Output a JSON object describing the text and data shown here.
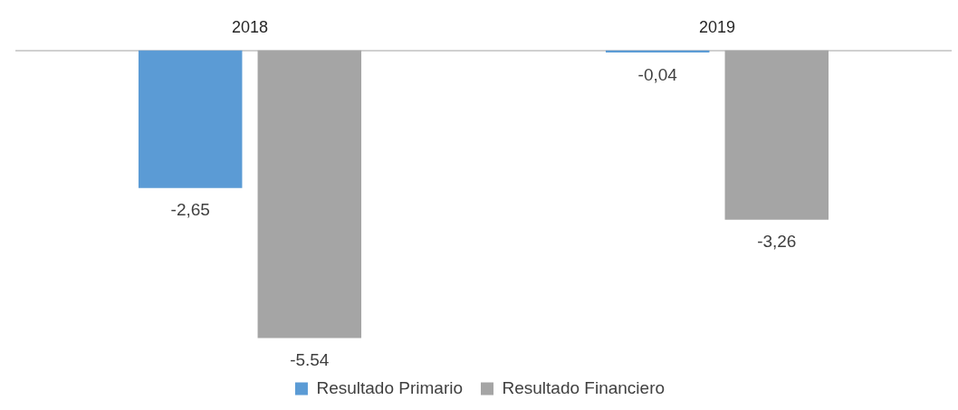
{
  "chart_data": {
    "type": "bar",
    "categories": [
      "2018",
      "2019"
    ],
    "series": [
      {
        "name": "Resultado Primario",
        "color": "#5b9bd5",
        "values": [
          -2.65,
          -0.04
        ],
        "value_labels": [
          "-2,65",
          "-0,04"
        ]
      },
      {
        "name": "Resultado Financiero",
        "color": "#a5a5a5",
        "values": [
          -5.54,
          -3.26
        ],
        "value_labels": [
          "-5.54",
          "-3,26"
        ]
      }
    ],
    "tick_labels": "x",
    "grid": false,
    "legend": "bottom"
  }
}
